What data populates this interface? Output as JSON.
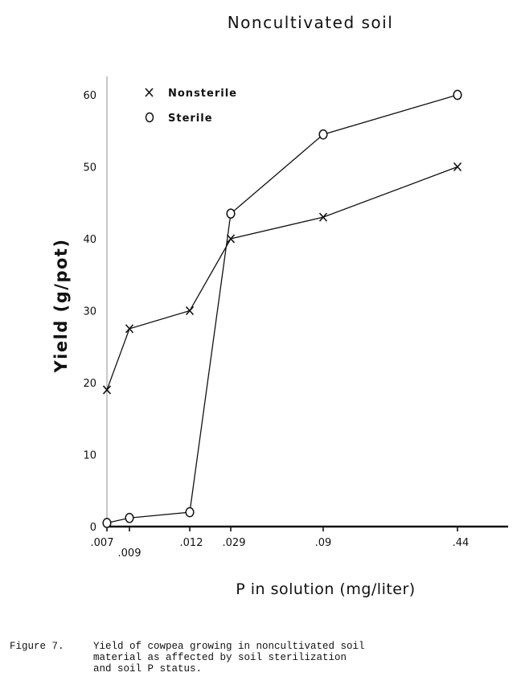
{
  "chart_data": {
    "type": "line",
    "title": "Noncultivated soil",
    "xlabel": "P in solution (mg/liter)",
    "ylabel": "Yield (g/pot)",
    "categories": [
      ".007",
      ".009",
      ".012",
      ".029",
      ".09",
      ".44"
    ],
    "ylim": [
      0,
      60
    ],
    "yticks": [
      "0",
      "10",
      "20",
      "30",
      "40",
      "50",
      "60"
    ],
    "legend_position": "top-left",
    "grid": false,
    "series": [
      {
        "name": "Nonsterile",
        "marker": "X",
        "values": [
          19,
          27.5,
          30,
          40,
          43,
          50
        ]
      },
      {
        "name": "Sterile",
        "marker": "O",
        "values": [
          0.5,
          1.2,
          2,
          43.5,
          54.5,
          60
        ]
      }
    ]
  },
  "caption": {
    "label": "Figure 7.",
    "lines": [
      "Yield of cowpea growing in noncultivated soil",
      "material as affected by soil sterilization",
      "and soil P status."
    ]
  }
}
